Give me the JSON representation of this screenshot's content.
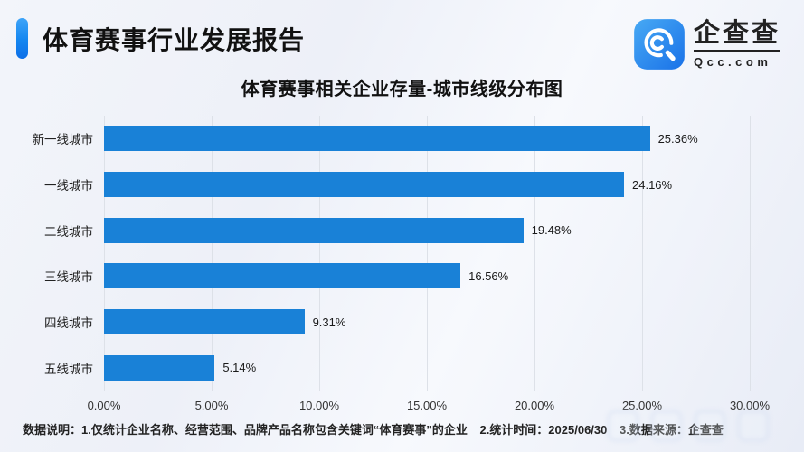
{
  "header": {
    "title": "体育赛事行业发展报告",
    "logo": {
      "name": "企查查",
      "domain": "Qcc.com",
      "icon": "qcc-magnifier-icon",
      "icon_color_top": "#47a9f4",
      "icon_color_bottom": "#1a72e8"
    },
    "accent_color": "#1486f0"
  },
  "chart_data": {
    "type": "bar",
    "orientation": "horizontal",
    "title": "体育赛事相关企业存量-城市线级分布图",
    "categories": [
      "新一线城市",
      "一线城市",
      "二线城市",
      "三线城市",
      "四线城市",
      "五线城市"
    ],
    "values": [
      25.36,
      24.16,
      19.48,
      16.56,
      9.31,
      5.14
    ],
    "value_labels": [
      "25.36%",
      "24.16%",
      "19.48%",
      "16.56%",
      "9.31%",
      "5.14%"
    ],
    "x_ticks": [
      "0.00%",
      "5.00%",
      "10.00%",
      "15.00%",
      "20.00%",
      "25.00%",
      "30.00%"
    ],
    "xlim": [
      0,
      30
    ],
    "xlabel": "",
    "ylabel": "",
    "bar_color": "#1981d7",
    "grid": true,
    "legend": false
  },
  "footer": {
    "items": [
      "数据说明：1.仅统计企业名称、经营范围、品牌产品名称包含关键词“体育赛事”的企业",
      "2.统计时间：2025/06/30",
      "3.数据来源：企查查"
    ]
  }
}
